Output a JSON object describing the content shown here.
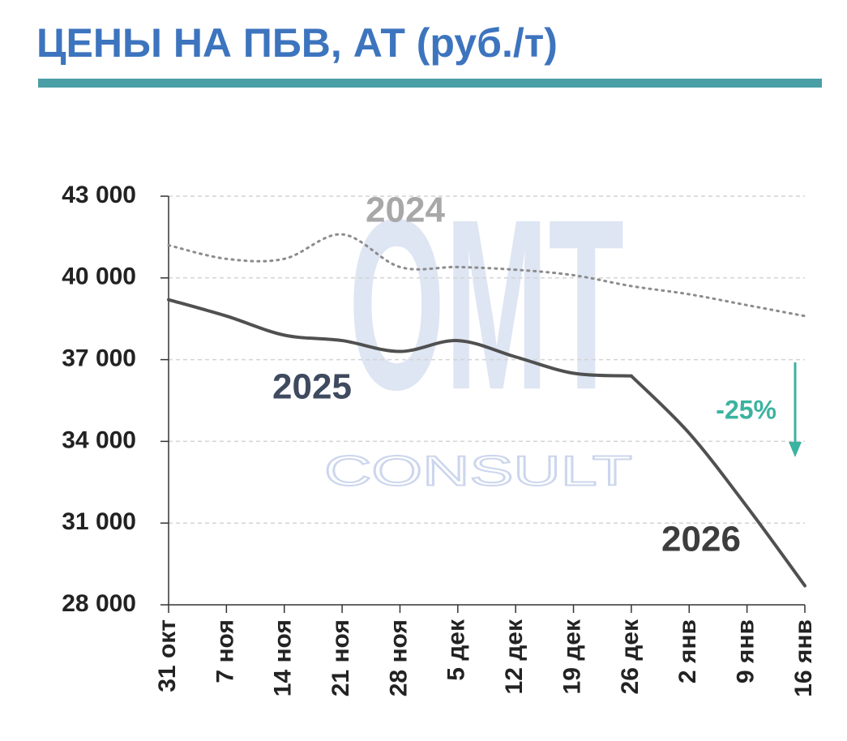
{
  "chart_data": {
    "type": "line",
    "title": "ЦЕНЫ НА ПБВ, АТ (руб./т)",
    "categories": [
      "31 окт",
      "7 ноя",
      "14 ноя",
      "21 ноя",
      "28 ноя",
      "5 дек",
      "12 дек",
      "19 дек",
      "26 дек",
      "2 янв",
      "9 янв",
      "16 янв"
    ],
    "series": [
      {
        "name": "2024",
        "color": "#8c8c8c",
        "dash": "dotted",
        "label_color": "#a8a8a8",
        "values": [
          41200,
          40700,
          40700,
          41600,
          40400,
          40400,
          40300,
          40100,
          39700,
          39400,
          39000,
          38600
        ]
      },
      {
        "name": "2025",
        "color": "#505050",
        "dash": "solid",
        "label_color": "#3f4a5e",
        "values": [
          39200,
          38600,
          37900,
          37700,
          37300,
          37700,
          37100,
          36500,
          36400,
          null,
          null,
          null
        ]
      },
      {
        "name": "2026",
        "color": "#505050",
        "dash": "solid",
        "label_color": "#3d3d3d",
        "values": [
          null,
          null,
          null,
          null,
          null,
          null,
          null,
          null,
          36400,
          34300,
          31600,
          28700
        ]
      }
    ],
    "ylim": [
      28000,
      43000
    ],
    "yticks": [
      {
        "value": 28000,
        "label": "28 000"
      },
      {
        "value": 31000,
        "label": "31 000"
      },
      {
        "value": 34000,
        "label": "34 000"
      },
      {
        "value": 37000,
        "label": "37 000"
      },
      {
        "value": 40000,
        "label": "40 000"
      },
      {
        "value": 43000,
        "label": "43 000"
      }
    ],
    "grid": true,
    "annotations": [
      "-25%"
    ],
    "watermark": [
      "OMT",
      "CONSULT"
    ]
  }
}
